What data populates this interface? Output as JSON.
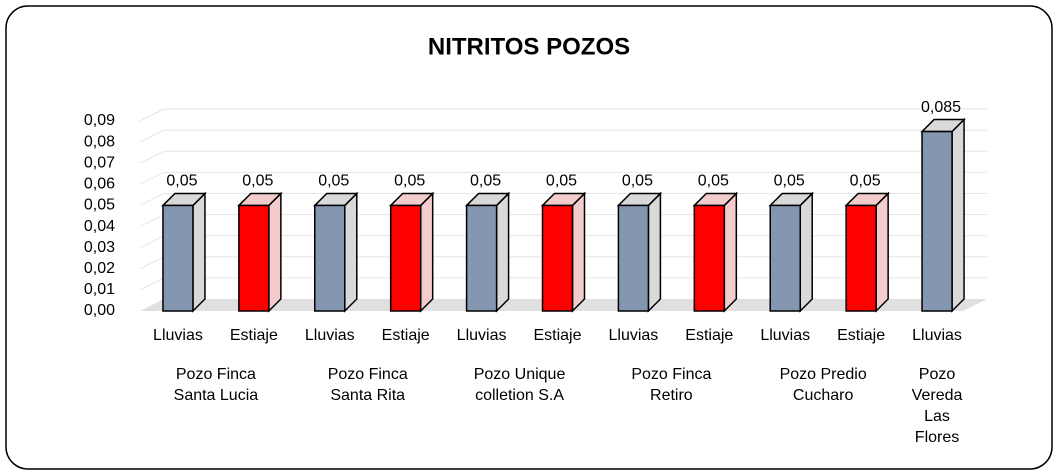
{
  "chart_data": {
    "type": "bar3d",
    "title": "NITRITOS POZOS",
    "colors": [
      "#8497b0",
      "#ff0000"
    ],
    "groups": [
      {
        "name": "Pozo Finca Santa Lucia",
        "categories": [
          "Lluvias",
          "Estiaje"
        ],
        "values": [
          0.05,
          0.05
        ],
        "value_labels": [
          "0,05",
          "0,05"
        ]
      },
      {
        "name": "Pozo Finca Santa Rita",
        "categories": [
          "Lluvias",
          "Estiaje"
        ],
        "values": [
          0.05,
          0.05
        ],
        "value_labels": [
          "0,05",
          "0,05"
        ]
      },
      {
        "name": "Pozo Unique colletion S.A",
        "categories": [
          "Lluvias",
          "Estiaje"
        ],
        "values": [
          0.05,
          0.05
        ],
        "value_labels": [
          "0,05",
          "0,05"
        ]
      },
      {
        "name": "Pozo Finca Retiro",
        "categories": [
          "Lluvias",
          "Estiaje"
        ],
        "values": [
          0.05,
          0.05
        ],
        "value_labels": [
          "0,05",
          "0,05"
        ]
      },
      {
        "name": "Pozo Predio Cucharo",
        "categories": [
          "Lluvias",
          "Estiaje"
        ],
        "values": [
          0.05,
          0.05
        ],
        "value_labels": [
          "0,05",
          "0,05"
        ]
      },
      {
        "name": "Pozo Vereda Las Flores",
        "categories": [
          "Lluvias"
        ],
        "values": [
          0.085
        ],
        "value_labels": [
          "0,085"
        ]
      }
    ],
    "ylim": [
      0,
      0.09
    ],
    "yticks": [
      {
        "value": 0,
        "label": "0,00"
      },
      {
        "value": 0.01,
        "label": "0,01"
      },
      {
        "value": 0.02,
        "label": "0,02"
      },
      {
        "value": 0.03,
        "label": "0,03"
      },
      {
        "value": 0.04,
        "label": "0,04"
      },
      {
        "value": 0.05,
        "label": "0,05"
      },
      {
        "value": 0.06,
        "label": "0,06"
      },
      {
        "value": 0.07,
        "label": "0,07"
      },
      {
        "value": 0.08,
        "label": "0,08"
      },
      {
        "value": 0.09,
        "label": "0,09"
      }
    ],
    "grid": true
  }
}
